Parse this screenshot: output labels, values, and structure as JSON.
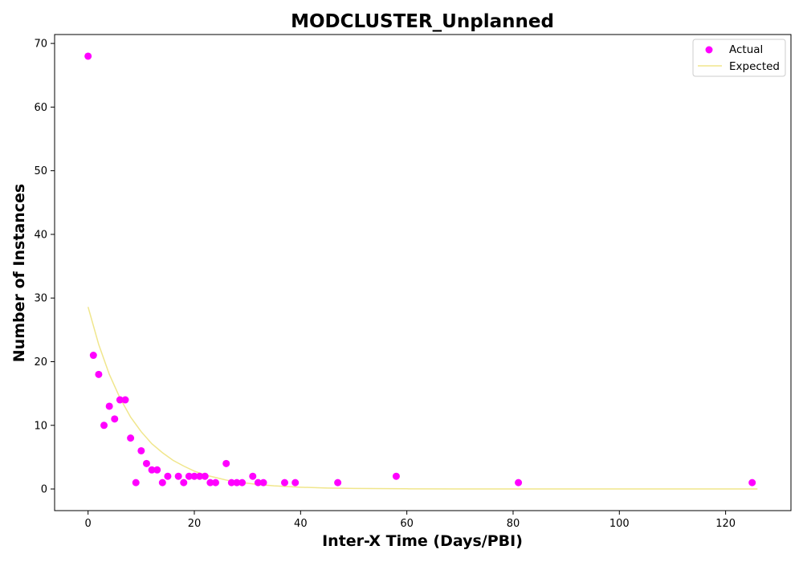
{
  "chart_data": {
    "type": "scatter",
    "title": "MODCLUSTER_Unplanned",
    "xlabel": "Inter-X Time (Days/PBI)",
    "ylabel": "Number of Instances",
    "xlim": [
      -6.3,
      132.3
    ],
    "ylim": [
      -3.4,
      71.4
    ],
    "xticks": [
      0,
      20,
      40,
      60,
      80,
      100,
      120
    ],
    "yticks": [
      0,
      10,
      20,
      30,
      40,
      50,
      60,
      70
    ],
    "grid": false,
    "legend_position": "top-right",
    "series": [
      {
        "name": "Actual",
        "kind": "scatter",
        "color": "#ff00ff",
        "points": [
          [
            0,
            68
          ],
          [
            1,
            21
          ],
          [
            2,
            18
          ],
          [
            3,
            10
          ],
          [
            4,
            13
          ],
          [
            5,
            11
          ],
          [
            6,
            14
          ],
          [
            7,
            14
          ],
          [
            8,
            8
          ],
          [
            9,
            1
          ],
          [
            10,
            6
          ],
          [
            11,
            4
          ],
          [
            12,
            3
          ],
          [
            13,
            3
          ],
          [
            14,
            1
          ],
          [
            15,
            2
          ],
          [
            17,
            2
          ],
          [
            18,
            1
          ],
          [
            19,
            2
          ],
          [
            20,
            2
          ],
          [
            21,
            2
          ],
          [
            22,
            2
          ],
          [
            23,
            1
          ],
          [
            24,
            1
          ],
          [
            26,
            4
          ],
          [
            27,
            1
          ],
          [
            28,
            1
          ],
          [
            29,
            1
          ],
          [
            31,
            2
          ],
          [
            32,
            1
          ],
          [
            33,
            1
          ],
          [
            37,
            1
          ],
          [
            39,
            1
          ],
          [
            47,
            1
          ],
          [
            58,
            2
          ],
          [
            81,
            1
          ],
          [
            125,
            1
          ]
        ]
      },
      {
        "name": "Expected",
        "kind": "line",
        "color": "#f0e68c",
        "points": [
          [
            0,
            28.6
          ],
          [
            2,
            22.7
          ],
          [
            4,
            18.0
          ],
          [
            6,
            14.3
          ],
          [
            8,
            11.3
          ],
          [
            10,
            9.0
          ],
          [
            12,
            7.1
          ],
          [
            14,
            5.7
          ],
          [
            16,
            4.5
          ],
          [
            18,
            3.6
          ],
          [
            20,
            2.8
          ],
          [
            22,
            2.2
          ],
          [
            24,
            1.8
          ],
          [
            26,
            1.4
          ],
          [
            28,
            1.1
          ],
          [
            30,
            0.9
          ],
          [
            32,
            0.7
          ],
          [
            35,
            0.5
          ],
          [
            40,
            0.28
          ],
          [
            45,
            0.15
          ],
          [
            50,
            0.09
          ],
          [
            60,
            0.03
          ],
          [
            70,
            0.01
          ],
          [
            80,
            0.0
          ],
          [
            100,
            0.0
          ],
          [
            126,
            0.0
          ]
        ]
      }
    ]
  }
}
